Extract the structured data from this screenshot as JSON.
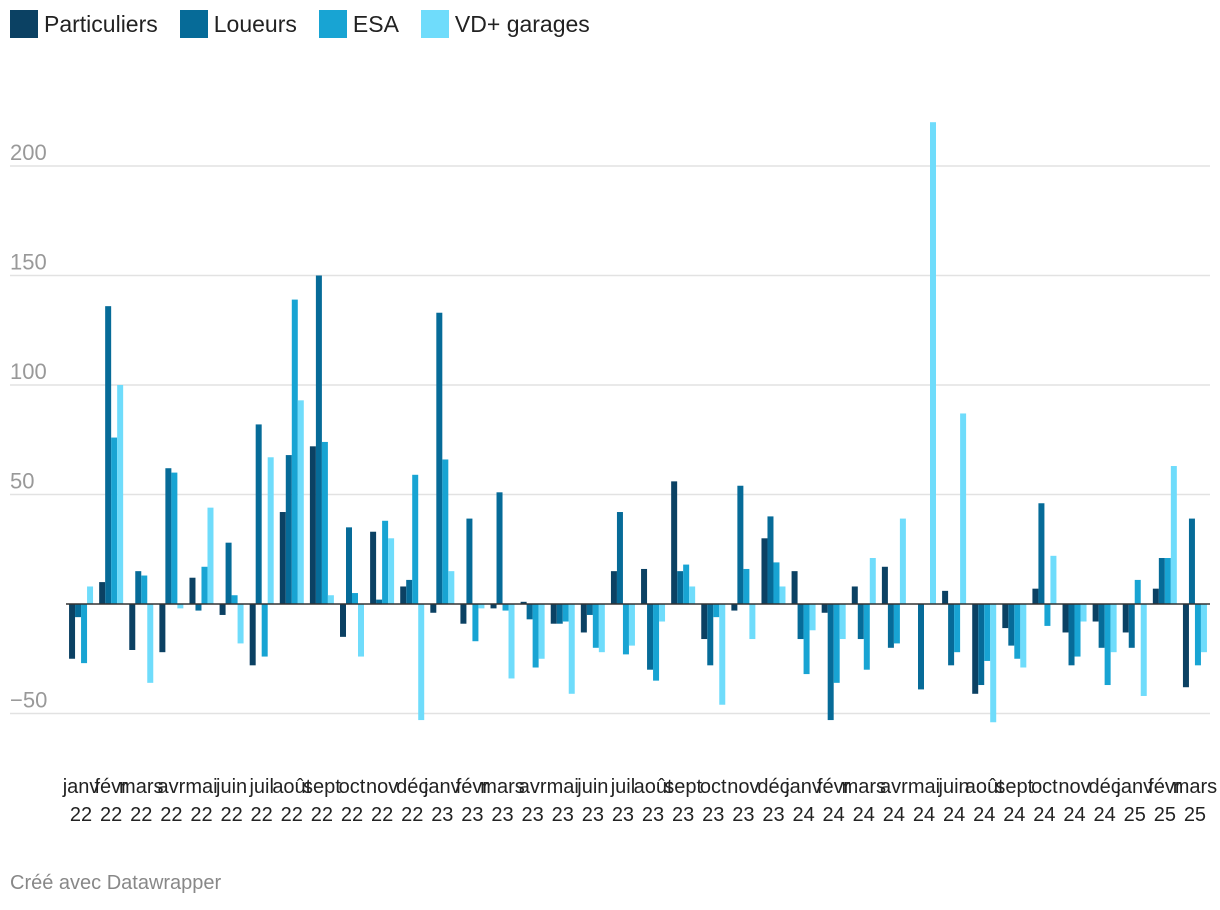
{
  "legend": [
    {
      "name": "Particuliers",
      "color": "#0b4163"
    },
    {
      "name": "Loueurs",
      "color": "#066b98"
    },
    {
      "name": "ESA",
      "color": "#18a4d3"
    },
    {
      "name": "VD+ garages",
      "color": "#6fdcfb"
    }
  ],
  "credit": "Créé avec Datawrapper",
  "chart_data": {
    "type": "bar",
    "title": "",
    "xlabel": "",
    "ylabel": "",
    "ylim": [
      -65,
      225
    ],
    "yticks": [
      -50,
      50,
      100,
      150,
      200
    ],
    "grid": true,
    "legend_position": "top-left",
    "categories": [
      {
        "month": "janv",
        "year": "22"
      },
      {
        "month": "févr",
        "year": "22"
      },
      {
        "month": "mars",
        "year": "22"
      },
      {
        "month": "avr",
        "year": "22"
      },
      {
        "month": "mai",
        "year": "22"
      },
      {
        "month": "juin",
        "year": "22"
      },
      {
        "month": "juil",
        "year": "22"
      },
      {
        "month": "août",
        "year": "22"
      },
      {
        "month": "sept",
        "year": "22"
      },
      {
        "month": "oct",
        "year": "22"
      },
      {
        "month": "nov",
        "year": "22"
      },
      {
        "month": "déc",
        "year": "22"
      },
      {
        "month": "janv",
        "year": "23"
      },
      {
        "month": "févr",
        "year": "23"
      },
      {
        "month": "mars",
        "year": "23"
      },
      {
        "month": "avr",
        "year": "23"
      },
      {
        "month": "mai",
        "year": "23"
      },
      {
        "month": "juin",
        "year": "23"
      },
      {
        "month": "juil",
        "year": "23"
      },
      {
        "month": "août",
        "year": "23"
      },
      {
        "month": "sept",
        "year": "23"
      },
      {
        "month": "oct",
        "year": "23"
      },
      {
        "month": "nov",
        "year": "23"
      },
      {
        "month": "déc",
        "year": "23"
      },
      {
        "month": "janv",
        "year": "24"
      },
      {
        "month": "févr",
        "year": "24"
      },
      {
        "month": "mars",
        "year": "24"
      },
      {
        "month": "avr",
        "year": "24"
      },
      {
        "month": "mai",
        "year": "24"
      },
      {
        "month": "juin",
        "year": "24"
      },
      {
        "month": "août",
        "year": "24"
      },
      {
        "month": "sept",
        "year": "24"
      },
      {
        "month": "oct",
        "year": "24"
      },
      {
        "month": "nov",
        "year": "24"
      },
      {
        "month": "déc",
        "year": "24"
      },
      {
        "month": "janv",
        "year": "25"
      },
      {
        "month": "févr",
        "year": "25"
      },
      {
        "month": "mars",
        "year": "25"
      }
    ],
    "series": [
      {
        "name": "Particuliers",
        "color": "#0b4163",
        "values": [
          -25,
          10,
          -21,
          -22,
          12,
          -5,
          -28,
          42,
          72,
          -15,
          33,
          8,
          -4,
          -9,
          -2,
          1,
          -9,
          -13,
          15,
          16,
          56,
          -16,
          -3,
          30,
          15,
          -4,
          8,
          17,
          0,
          6,
          -41,
          -11,
          7,
          -13,
          -8,
          -13,
          7,
          -38
        ]
      },
      {
        "name": "Loueurs",
        "color": "#066b98",
        "values": [
          -6,
          136,
          15,
          62,
          -3,
          28,
          82,
          68,
          150,
          35,
          2,
          11,
          133,
          39,
          51,
          -7,
          -9,
          -5,
          42,
          -30,
          15,
          -28,
          54,
          40,
          -16,
          -53,
          -16,
          -20,
          -39,
          -28,
          -37,
          -19,
          46,
          -28,
          -20,
          -20,
          21,
          39
        ]
      },
      {
        "name": "ESA",
        "color": "#18a4d3",
        "values": [
          -27,
          76,
          13,
          60,
          17,
          4,
          -24,
          139,
          74,
          5,
          38,
          59,
          66,
          -17,
          -3,
          -29,
          -8,
          -20,
          -23,
          -35,
          18,
          -6,
          16,
          19,
          -32,
          -36,
          -30,
          -18,
          0,
          -22,
          -26,
          -25,
          -10,
          -24,
          -37,
          11,
          21,
          -28
        ]
      },
      {
        "name": "VD+ garages",
        "color": "#6fdcfb",
        "values": [
          8,
          100,
          -36,
          -2,
          44,
          -18,
          67,
          93,
          4,
          -24,
          30,
          -53,
          15,
          -2,
          -34,
          -25,
          -41,
          -22,
          -19,
          -8,
          8,
          -46,
          -16,
          8,
          -12,
          -16,
          21,
          39,
          220,
          87,
          -54,
          -29,
          22,
          -8,
          -22,
          -42,
          63,
          -22
        ]
      }
    ]
  }
}
